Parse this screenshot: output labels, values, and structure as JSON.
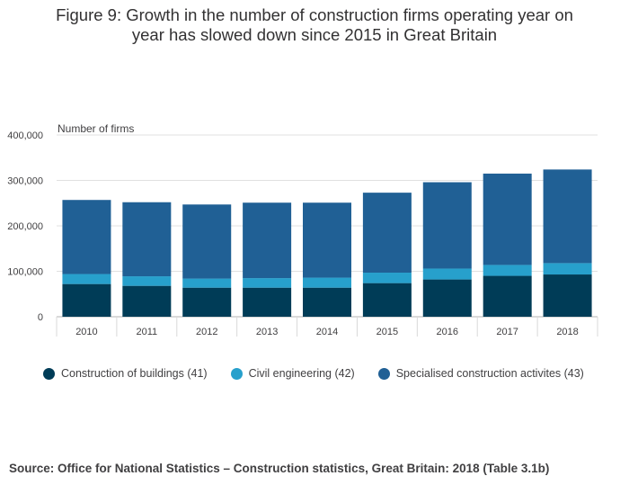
{
  "title_line1": "Figure 9: Growth in the number of construction firms operating year on",
  "title_line2": "year has slowed down since 2015 in Great Britain",
  "source": "Source: Office for National Statistics – Construction statistics, Great Britain: 2018 (Table 3.1b)",
  "chart_data": {
    "type": "bar",
    "stacked": true,
    "ylabel": "Number of firms",
    "ylim": [
      0,
      400000
    ],
    "yticks": [
      0,
      100000,
      200000,
      300000,
      400000
    ],
    "ytick_labels": [
      "0",
      "100,000",
      "200,000",
      "300,000",
      "400,000"
    ],
    "grid": true,
    "legend_position": "bottom",
    "categories": [
      "2010",
      "2011",
      "2012",
      "2013",
      "2014",
      "2015",
      "2016",
      "2017",
      "2018"
    ],
    "series": [
      {
        "name": "Construction of buildings (41)",
        "color": "#003c57",
        "values": [
          72000,
          68000,
          64000,
          64000,
          64000,
          74000,
          82000,
          90000,
          93000
        ]
      },
      {
        "name": "Civil engineering (42)",
        "color": "#27a0cc",
        "values": [
          22000,
          21000,
          20000,
          21000,
          22000,
          23000,
          24000,
          24000,
          25000
        ]
      },
      {
        "name": "Specialised construction activites (43)",
        "color": "#206095",
        "values": [
          163000,
          163000,
          163000,
          166000,
          165000,
          176000,
          190000,
          201000,
          206000
        ]
      }
    ]
  }
}
